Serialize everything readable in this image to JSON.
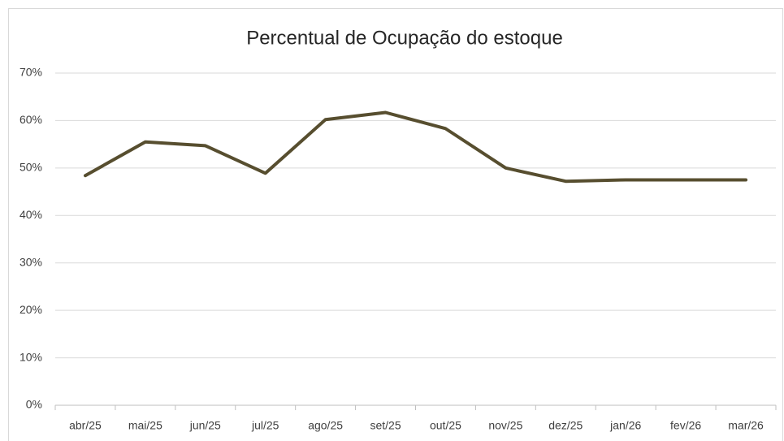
{
  "chart_data": {
    "type": "line",
    "title": "Percentual de Ocupação do estoque",
    "categories": [
      "abr/25",
      "mai/25",
      "jun/25",
      "jul/25",
      "ago/25",
      "set/25",
      "out/25",
      "nov/25",
      "dez/25",
      "jan/26",
      "fev/26",
      "mar/26"
    ],
    "values": [
      48.4,
      55.5,
      54.7,
      48.9,
      60.2,
      61.7,
      58.3,
      50.0,
      47.2,
      47.5,
      47.5,
      47.5
    ],
    "color": "#574e2f",
    "ylim": [
      0,
      70
    ],
    "yticks": [
      {
        "value": 0,
        "label": "0%"
      },
      {
        "value": 10,
        "label": "10%"
      },
      {
        "value": 20,
        "label": "20%"
      },
      {
        "value": 30,
        "label": "30%"
      },
      {
        "value": 40,
        "label": "40%"
      },
      {
        "value": 50,
        "label": "50%"
      },
      {
        "value": 60,
        "label": "60%"
      },
      {
        "value": 70,
        "label": "70%"
      }
    ],
    "grid": true
  }
}
